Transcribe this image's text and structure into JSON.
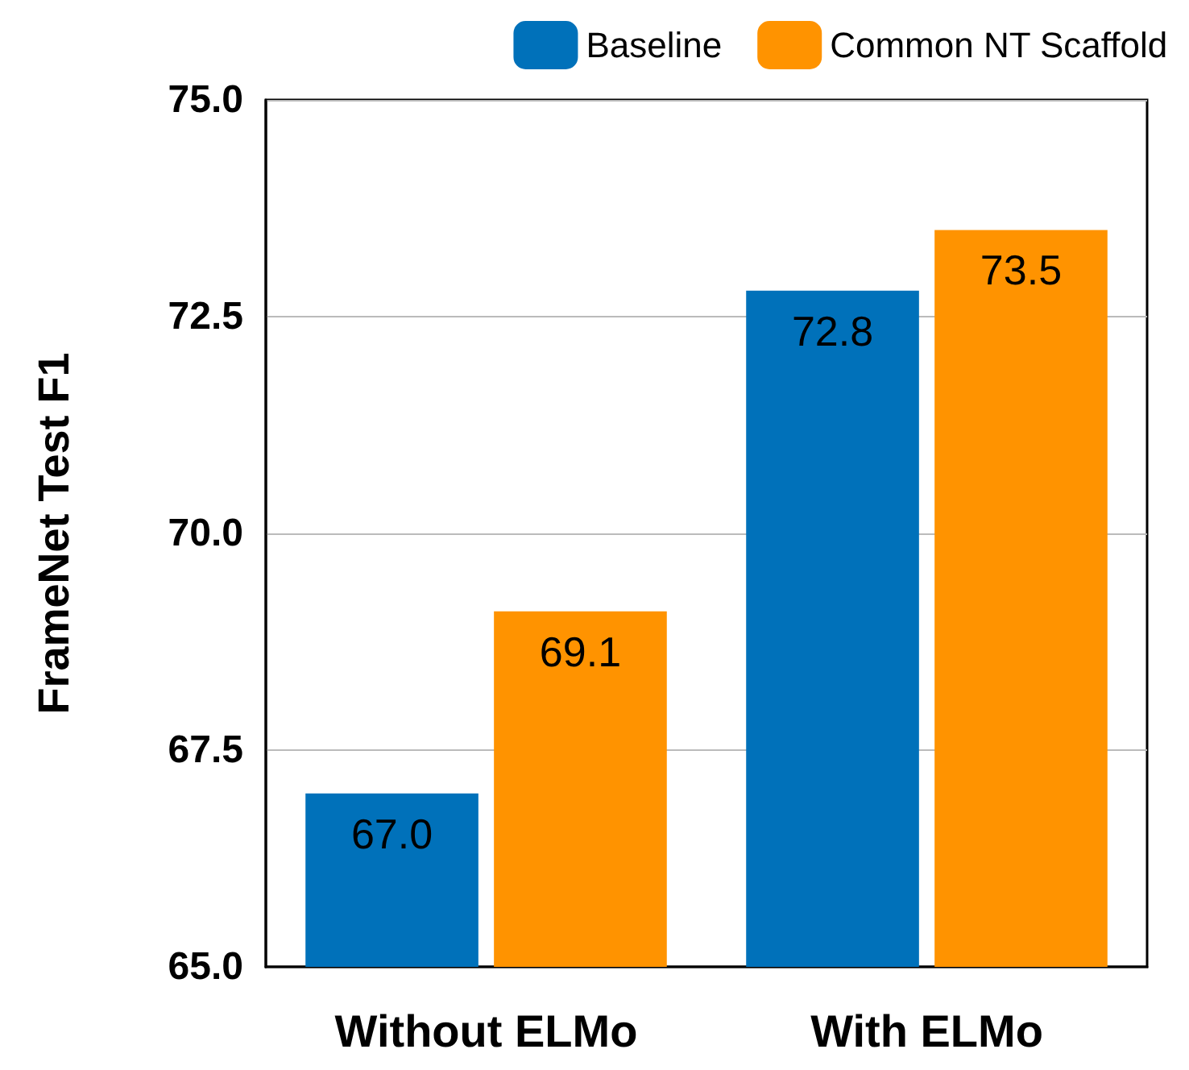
{
  "chart_data": {
    "type": "bar",
    "ylabel": "FrameNet Test F1",
    "categories": [
      "Without ELMo",
      "With ELMo"
    ],
    "series": [
      {
        "name": "Baseline",
        "color": "#0071ba",
        "values": [
          67.0,
          72.8
        ],
        "value_labels": [
          "67.0",
          "72.8"
        ]
      },
      {
        "name": "Common NT Scaffold",
        "color": "#ff9300",
        "values": [
          69.1,
          73.5
        ],
        "value_labels": [
          "69.1",
          "73.5"
        ]
      }
    ],
    "ylim": [
      65,
      75
    ],
    "yticks": [
      {
        "value": 65,
        "label": "65.0"
      },
      {
        "value": 67.5,
        "label": "67.5"
      },
      {
        "value": 70,
        "label": "70.0"
      },
      {
        "value": 72.5,
        "label": "72.5"
      },
      {
        "value": 75,
        "label": "75.0"
      }
    ],
    "grid": "y",
    "legend": "top right"
  }
}
